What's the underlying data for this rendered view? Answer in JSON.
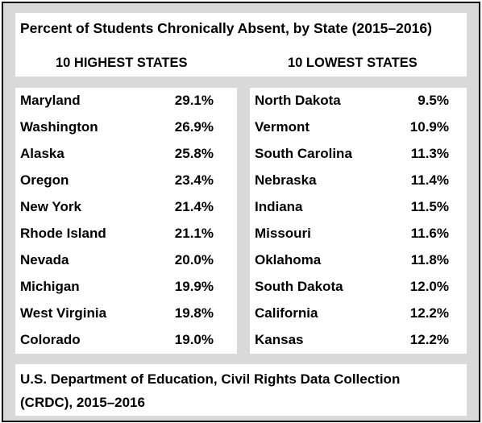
{
  "title": "Percent of Students Chronically Absent, by State (2015–2016)",
  "highest": {
    "heading": "10 HIGHEST STATES",
    "rows": [
      {
        "state": "Maryland",
        "pct": "29.1%"
      },
      {
        "state": "Washington",
        "pct": "26.9%"
      },
      {
        "state": "Alaska",
        "pct": "25.8%"
      },
      {
        "state": "Oregon",
        "pct": "23.4%"
      },
      {
        "state": "New York",
        "pct": "21.4%"
      },
      {
        "state": "Rhode Island",
        "pct": "21.1%"
      },
      {
        "state": "Nevada",
        "pct": "20.0%"
      },
      {
        "state": "Michigan",
        "pct": "19.9%"
      },
      {
        "state": "West Virginia",
        "pct": "19.8%"
      },
      {
        "state": "Colorado",
        "pct": "19.0%"
      }
    ]
  },
  "lowest": {
    "heading": "10 LOWEST STATES",
    "rows": [
      {
        "state": "North Dakota",
        "pct": "9.5%"
      },
      {
        "state": "Vermont",
        "pct": "10.9%"
      },
      {
        "state": "South Carolina",
        "pct": "11.3%"
      },
      {
        "state": "Nebraska",
        "pct": "11.4%"
      },
      {
        "state": "Indiana",
        "pct": "11.5%"
      },
      {
        "state": "Missouri",
        "pct": "11.6%"
      },
      {
        "state": "Oklahoma",
        "pct": "11.8%"
      },
      {
        "state": "South Dakota",
        "pct": "12.0%"
      },
      {
        "state": "California",
        "pct": "12.2%"
      },
      {
        "state": "Kansas",
        "pct": "12.2%"
      }
    ]
  },
  "source": "U.S. Department of Education, Civil Rights Data Collection (CRDC), 2015–2016"
}
